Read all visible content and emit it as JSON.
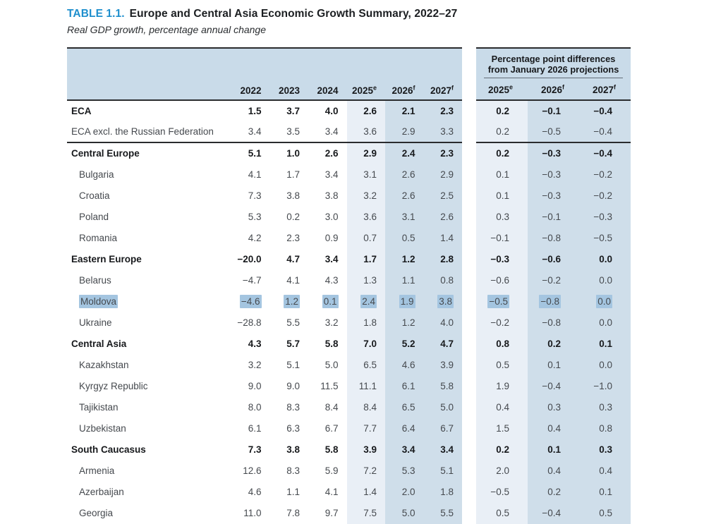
{
  "title": {
    "label": "TABLE 1.1.",
    "text": "Europe and Central Asia Economic Growth Summary, 2022–27",
    "subtitle": "Real GDP growth, percentage annual change"
  },
  "colors": {
    "accent_blue": "#1f8fcd",
    "header_bg": "#c9dbe9",
    "column_light": "#e9eff6",
    "column_medium": "#cfdeea",
    "selection_highlight": "#a4c5e0"
  },
  "table": {
    "year_columns": [
      {
        "label": "2022",
        "sup": ""
      },
      {
        "label": "2023",
        "sup": ""
      },
      {
        "label": "2024",
        "sup": ""
      },
      {
        "label": "2025",
        "sup": "e"
      },
      {
        "label": "2026",
        "sup": "f"
      },
      {
        "label": "2027",
        "sup": "f"
      }
    ],
    "diff_header": {
      "line1": "Percentage point differences",
      "line2": "from January 2026 projections"
    },
    "diff_columns": [
      {
        "label": "2025",
        "sup": "e"
      },
      {
        "label": "2026",
        "sup": "f"
      },
      {
        "label": "2027",
        "sup": "f"
      }
    ],
    "rows": [
      {
        "name": "ECA",
        "bold": true,
        "indent": false,
        "highlight": false,
        "rule_below": false,
        "values": [
          "1.5",
          "3.7",
          "4.0",
          "2.6",
          "2.1",
          "2.3"
        ],
        "diffs": [
          "0.2",
          "−0.1",
          "−0.4"
        ]
      },
      {
        "name": "ECA excl. the Russian Federation",
        "bold": false,
        "indent": false,
        "highlight": false,
        "rule_below": true,
        "values": [
          "3.4",
          "3.5",
          "3.4",
          "3.6",
          "2.9",
          "3.3"
        ],
        "diffs": [
          "0.2",
          "−0.5",
          "−0.4"
        ]
      },
      {
        "name": "Central Europe",
        "bold": true,
        "indent": false,
        "highlight": false,
        "rule_below": false,
        "values": [
          "5.1",
          "1.0",
          "2.6",
          "2.9",
          "2.4",
          "2.3"
        ],
        "diffs": [
          "0.2",
          "−0.3",
          "−0.4"
        ]
      },
      {
        "name": "Bulgaria",
        "bold": false,
        "indent": true,
        "highlight": false,
        "rule_below": false,
        "values": [
          "4.1",
          "1.7",
          "3.4",
          "3.1",
          "2.6",
          "2.9"
        ],
        "diffs": [
          "0.1",
          "−0.3",
          "−0.2"
        ]
      },
      {
        "name": "Croatia",
        "bold": false,
        "indent": true,
        "highlight": false,
        "rule_below": false,
        "values": [
          "7.3",
          "3.8",
          "3.8",
          "3.2",
          "2.6",
          "2.5"
        ],
        "diffs": [
          "0.1",
          "−0.3",
          "−0.2"
        ]
      },
      {
        "name": "Poland",
        "bold": false,
        "indent": true,
        "highlight": false,
        "rule_below": false,
        "values": [
          "5.3",
          "0.2",
          "3.0",
          "3.6",
          "3.1",
          "2.6"
        ],
        "diffs": [
          "0.3",
          "−0.1",
          "−0.3"
        ]
      },
      {
        "name": "Romania",
        "bold": false,
        "indent": true,
        "highlight": false,
        "rule_below": false,
        "values": [
          "4.2",
          "2.3",
          "0.9",
          "0.7",
          "0.5",
          "1.4"
        ],
        "diffs": [
          "−0.1",
          "−0.8",
          "−0.5"
        ]
      },
      {
        "name": "Eastern Europe",
        "bold": true,
        "indent": false,
        "highlight": false,
        "rule_below": false,
        "values": [
          "−20.0",
          "4.7",
          "3.4",
          "1.7",
          "1.2",
          "2.8"
        ],
        "diffs": [
          "−0.3",
          "−0.6",
          "0.0"
        ]
      },
      {
        "name": "Belarus",
        "bold": false,
        "indent": true,
        "highlight": false,
        "rule_below": false,
        "values": [
          "−4.7",
          "4.1",
          "4.3",
          "1.3",
          "1.1",
          "0.8"
        ],
        "diffs": [
          "−0.6",
          "−0.2",
          "0.0"
        ]
      },
      {
        "name": "Moldova",
        "bold": false,
        "indent": true,
        "highlight": true,
        "rule_below": false,
        "values": [
          "−4.6",
          "1.2",
          "0.1",
          "2.4",
          "1.9",
          "3.8"
        ],
        "diffs": [
          "−0.5",
          "−0.8",
          "0.0"
        ]
      },
      {
        "name": "Ukraine",
        "bold": false,
        "indent": true,
        "highlight": false,
        "rule_below": false,
        "values": [
          "−28.8",
          "5.5",
          "3.2",
          "1.8",
          "1.2",
          "4.0"
        ],
        "diffs": [
          "−0.2",
          "−0.8",
          "0.0"
        ]
      },
      {
        "name": "Central Asia",
        "bold": true,
        "indent": false,
        "highlight": false,
        "rule_below": false,
        "values": [
          "4.3",
          "5.7",
          "5.8",
          "7.0",
          "5.2",
          "4.7"
        ],
        "diffs": [
          "0.8",
          "0.2",
          "0.1"
        ]
      },
      {
        "name": "Kazakhstan",
        "bold": false,
        "indent": true,
        "highlight": false,
        "rule_below": false,
        "values": [
          "3.2",
          "5.1",
          "5.0",
          "6.5",
          "4.6",
          "3.9"
        ],
        "diffs": [
          "0.5",
          "0.1",
          "0.0"
        ]
      },
      {
        "name": "Kyrgyz Republic",
        "bold": false,
        "indent": true,
        "highlight": false,
        "rule_below": false,
        "values": [
          "9.0",
          "9.0",
          "11.5",
          "11.1",
          "6.1",
          "5.8"
        ],
        "diffs": [
          "1.9",
          "−0.4",
          "−1.0"
        ]
      },
      {
        "name": "Tajikistan",
        "bold": false,
        "indent": true,
        "highlight": false,
        "rule_below": false,
        "values": [
          "8.0",
          "8.3",
          "8.4",
          "8.4",
          "6.5",
          "5.0"
        ],
        "diffs": [
          "0.4",
          "0.3",
          "0.3"
        ]
      },
      {
        "name": "Uzbekistan",
        "bold": false,
        "indent": true,
        "highlight": false,
        "rule_below": false,
        "values": [
          "6.1",
          "6.3",
          "6.7",
          "7.7",
          "6.4",
          "6.7"
        ],
        "diffs": [
          "1.5",
          "0.4",
          "0.8"
        ]
      },
      {
        "name": "South Caucasus",
        "bold": true,
        "indent": false,
        "highlight": false,
        "rule_below": false,
        "values": [
          "7.3",
          "3.8",
          "5.8",
          "3.9",
          "3.4",
          "3.4"
        ],
        "diffs": [
          "0.2",
          "0.1",
          "0.3"
        ]
      },
      {
        "name": "Armenia",
        "bold": false,
        "indent": true,
        "highlight": false,
        "rule_below": false,
        "values": [
          "12.6",
          "8.3",
          "5.9",
          "7.2",
          "5.3",
          "5.1"
        ],
        "diffs": [
          "2.0",
          "0.4",
          "0.4"
        ]
      },
      {
        "name": "Azerbaijan",
        "bold": false,
        "indent": true,
        "highlight": false,
        "rule_below": false,
        "values": [
          "4.6",
          "1.1",
          "4.1",
          "1.4",
          "2.0",
          "1.8"
        ],
        "diffs": [
          "−0.5",
          "0.2",
          "0.1"
        ]
      },
      {
        "name": "Georgia",
        "bold": false,
        "indent": true,
        "highlight": false,
        "rule_below": false,
        "values": [
          "11.0",
          "7.8",
          "9.7",
          "7.5",
          "5.0",
          "5.5"
        ],
        "diffs": [
          "0.5",
          "−0.4",
          "0.5"
        ]
      }
    ]
  }
}
